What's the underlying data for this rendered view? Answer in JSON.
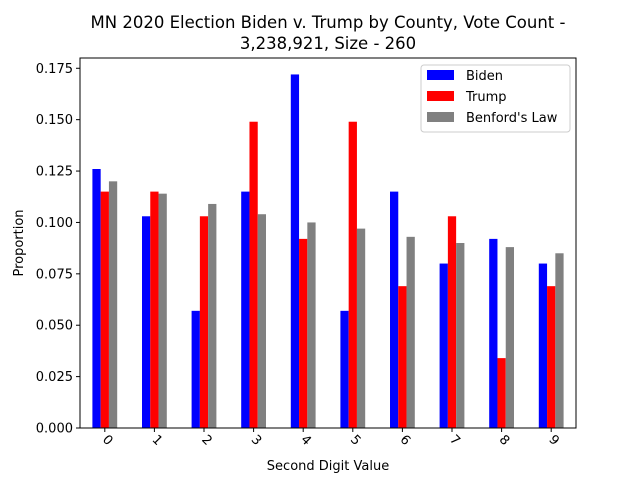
{
  "chart_data": {
    "type": "bar",
    "title_lines": [
      "MN 2020 Election Biden v. Trump by County, Vote Count -",
      "3,238,921, Size - 260"
    ],
    "xlabel": "Second Digit Value",
    "ylabel": "Proportion",
    "categories": [
      "0",
      "1",
      "2",
      "3",
      "4",
      "5",
      "6",
      "7",
      "8",
      "9"
    ],
    "ylim": [
      0,
      0.18
    ],
    "yticks": [
      "0.000",
      "0.025",
      "0.050",
      "0.075",
      "0.100",
      "0.125",
      "0.150",
      "0.175"
    ],
    "ytick_values": [
      0,
      0.025,
      0.05,
      0.075,
      0.1,
      0.125,
      0.15,
      0.175
    ],
    "grid": false,
    "legend_position": "top-right",
    "series": [
      {
        "name": "Biden",
        "color": "#0000ff",
        "values": [
          0.126,
          0.103,
          0.057,
          0.115,
          0.172,
          0.057,
          0.115,
          0.08,
          0.092,
          0.08
        ]
      },
      {
        "name": "Trump",
        "color": "#ff0000",
        "values": [
          0.115,
          0.115,
          0.103,
          0.149,
          0.092,
          0.149,
          0.069,
          0.103,
          0.034,
          0.069
        ]
      },
      {
        "name": "Benford's Law",
        "color": "#808080",
        "values": [
          0.12,
          0.114,
          0.109,
          0.104,
          0.1,
          0.097,
          0.093,
          0.09,
          0.088,
          0.085
        ]
      }
    ]
  }
}
